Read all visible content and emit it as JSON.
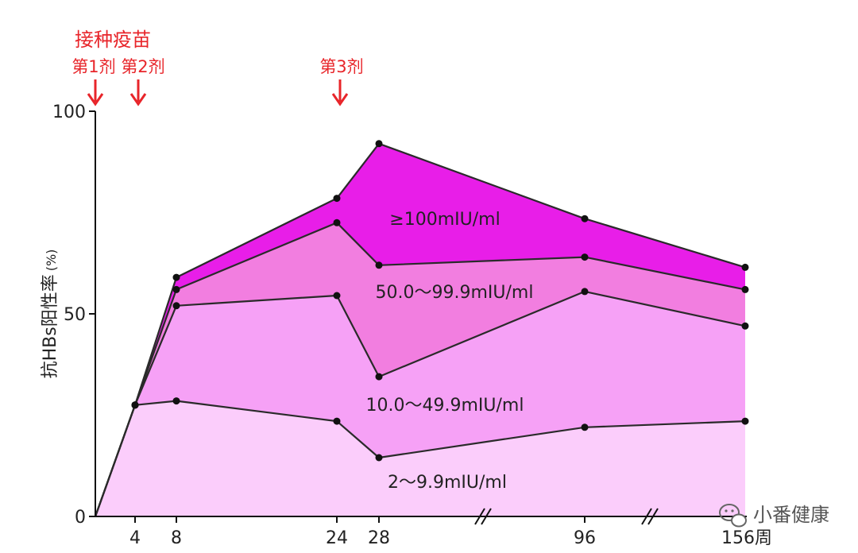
{
  "chart_data": {
    "type": "area",
    "title": "",
    "ylabel_main": "抗HBs阳性率",
    "ylabel_unit": "(%)",
    "ylim": [
      0,
      100
    ],
    "y_ticks": [
      "0",
      "50",
      "100"
    ],
    "x_ticks": [
      "4",
      "8",
      "24",
      "28",
      "96",
      "156周"
    ],
    "x": [
      0,
      4,
      8,
      24,
      28,
      96,
      156
    ],
    "x_axis_breaks": "between 28 and 96, and between 96 and 156",
    "vaccination": {
      "title": "接种疫苗",
      "doses": [
        {
          "label": "第1剂",
          "week": 0
        },
        {
          "label": "第2剂",
          "week": 4
        },
        {
          "label": "第3剂",
          "week": 24
        }
      ]
    },
    "series": [
      {
        "name": "2～9.9mIU/ml",
        "values": [
          0,
          27.5,
          28.5,
          23.5,
          14.5,
          22,
          23.5
        ],
        "color": "#fbcdfb"
      },
      {
        "name": "10.0～49.9mIU/ml",
        "values": [
          0,
          27.5,
          52,
          54.5,
          34.5,
          55.5,
          47
        ],
        "color": "#f6a1f6"
      },
      {
        "name": "50.0～99.9mIU/ml",
        "values": [
          0,
          27.5,
          56,
          72.5,
          62,
          64,
          56
        ],
        "color": "#f27ee0"
      },
      {
        "name": "≥100mIU/ml",
        "values": [
          0,
          27.5,
          59,
          78.5,
          92,
          73.5,
          61.5
        ],
        "color": "#e81ee8"
      }
    ],
    "band_labels": [
      "≥100mIU/ml",
      "50.0～99.9mIU/ml",
      "10.0～49.9mIU/ml",
      "2～9.9mIU/ml"
    ],
    "grid": false,
    "legend": "inside bands"
  },
  "watermark": {
    "text": "小番健康",
    "icon": "wechat-icon"
  },
  "colors": {
    "arrow": "#e8252a",
    "line": "#2a2a2a"
  }
}
